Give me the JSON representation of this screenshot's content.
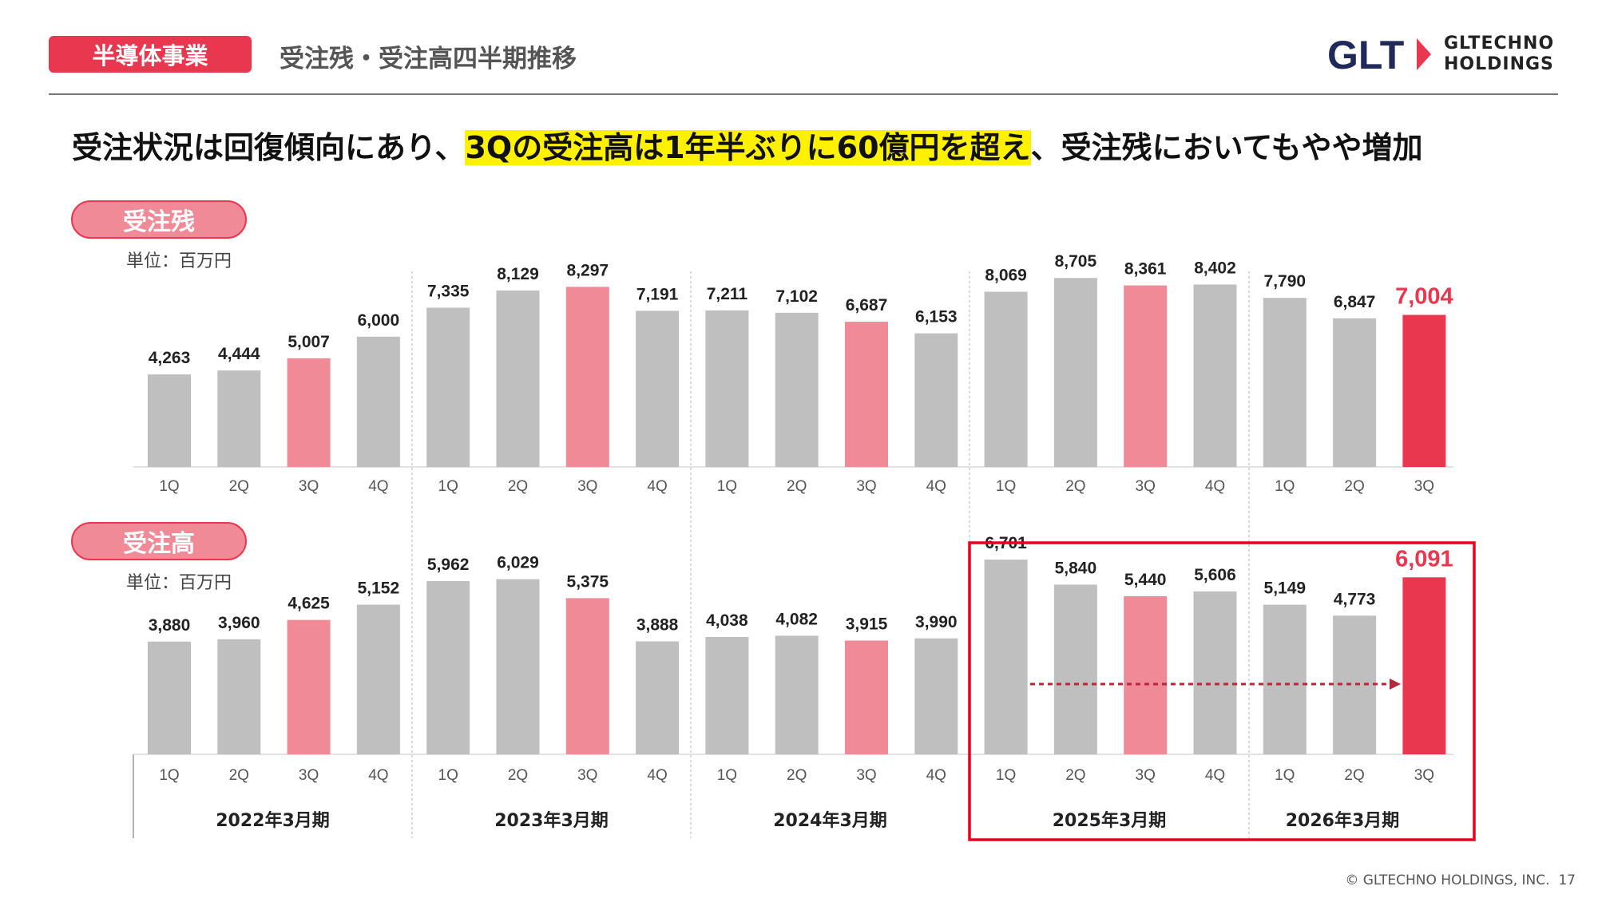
{
  "header": {
    "segment_badge": "半導体事業",
    "page_title": "受注残・受注高四半期推移",
    "logo_mark": "GLT",
    "logo_line1": "GLTECHNO",
    "logo_line2": "HOLDINGS"
  },
  "headline": {
    "prefix": "受注状況は回復傾向にあり、",
    "highlight": "3Qの受注高は1年半ぶりに60億円を超え",
    "suffix": "、受注残においてもやや増加"
  },
  "footer": {
    "copyright": "© GLTECHNO HOLDINGS, INC.",
    "page_number": "17"
  },
  "colors": {
    "gray_bar": "#bfbfbf",
    "pink_bar": "#f08a97",
    "red_bar": "#e8374f",
    "accent": "#e8374f",
    "frame": "#e8001c",
    "arrow": "#b3283c"
  },
  "chart_data": [
    {
      "type": "bar",
      "title": "受注残",
      "unit": "単位：百万円",
      "fiscal_years": [
        "2022年3月期",
        "2023年3月期",
        "2024年3月期",
        "2025年3月期",
        "2026年3月期"
      ],
      "categories": [
        "1Q",
        "2Q",
        "3Q",
        "4Q",
        "1Q",
        "2Q",
        "3Q",
        "4Q",
        "1Q",
        "2Q",
        "3Q",
        "4Q",
        "1Q",
        "2Q",
        "3Q",
        "4Q",
        "1Q",
        "2Q",
        "3Q"
      ],
      "values": [
        4263,
        4444,
        5007,
        6000,
        7335,
        8129,
        8297,
        7191,
        7211,
        7102,
        6687,
        6153,
        8069,
        8705,
        8361,
        8402,
        7790,
        6847,
        7004
      ],
      "labels": [
        "4,263",
        "4,444",
        "5,007",
        "6,000",
        "7,335",
        "8,129",
        "8,297",
        "7,191",
        "7,211",
        "7,102",
        "6,687",
        "6,153",
        "8,069",
        "8,705",
        "8,361",
        "8,402",
        "7,790",
        "6,847",
        "7,004"
      ],
      "ylim": [
        0,
        10000
      ]
    },
    {
      "type": "bar",
      "title": "受注高",
      "unit": "単位：百万円",
      "fiscal_years": [
        "2022年3月期",
        "2023年3月期",
        "2024年3月期",
        "2025年3月期",
        "2026年3月期"
      ],
      "categories": [
        "1Q",
        "2Q",
        "3Q",
        "4Q",
        "1Q",
        "2Q",
        "3Q",
        "4Q",
        "1Q",
        "2Q",
        "3Q",
        "4Q",
        "1Q",
        "2Q",
        "3Q",
        "4Q",
        "1Q",
        "2Q",
        "3Q"
      ],
      "values": [
        3880,
        3960,
        4625,
        5152,
        5962,
        6029,
        5375,
        3888,
        4038,
        4082,
        3915,
        3990,
        6701,
        5840,
        5440,
        5606,
        5149,
        4773,
        6091
      ],
      "labels": [
        "3,880",
        "3,960",
        "4,625",
        "5,152",
        "5,962",
        "6,029",
        "5,375",
        "3,888",
        "4,038",
        "4,082",
        "3,915",
        "3,990",
        "6,701",
        "5,840",
        "5,440",
        "5,606",
        "5,149",
        "4,773",
        "6,091"
      ],
      "ylim": [
        0,
        7500
      ]
    }
  ]
}
